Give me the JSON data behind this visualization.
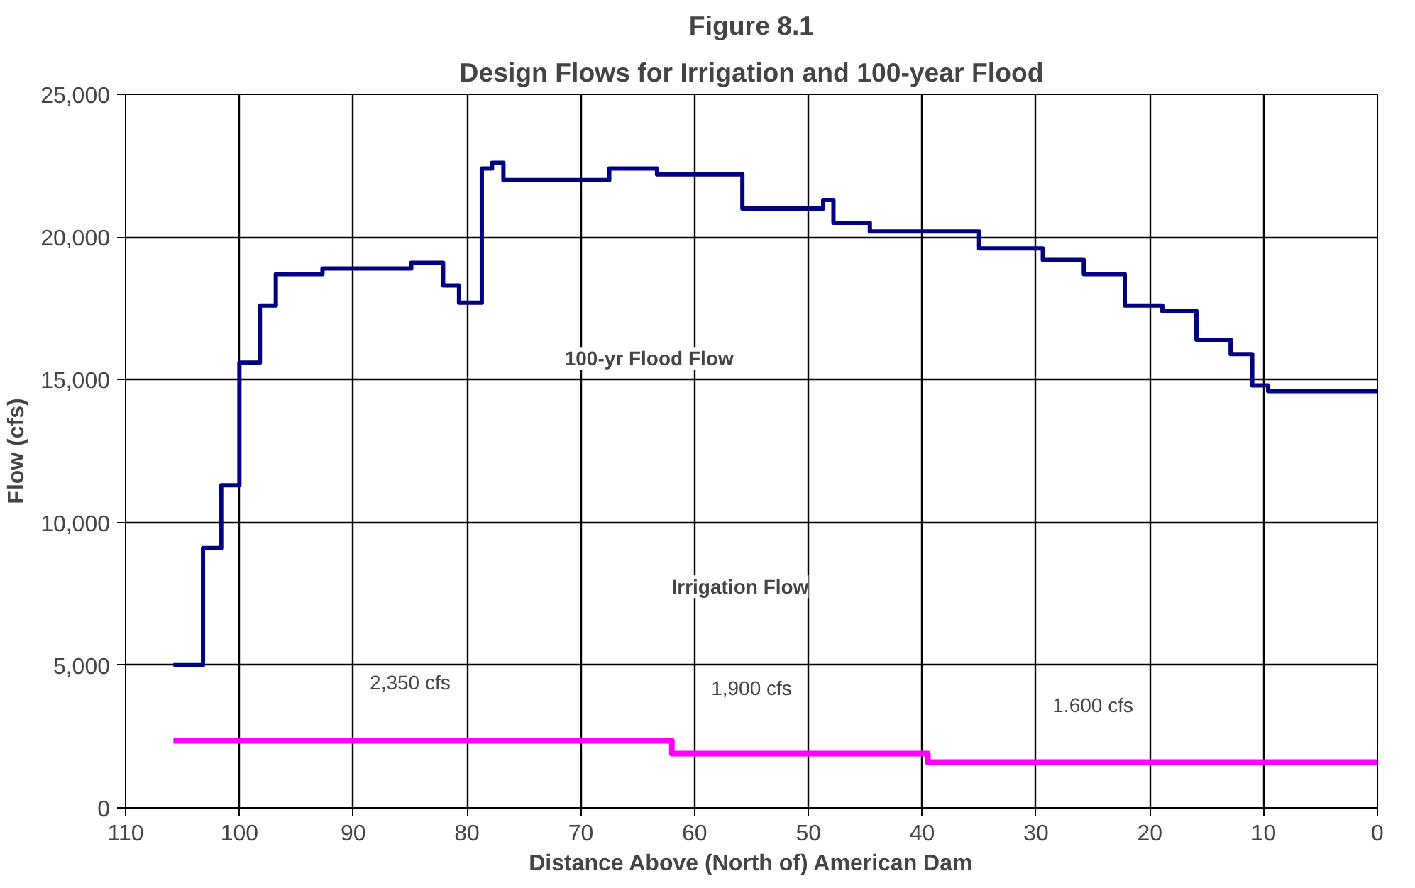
{
  "chart_data": {
    "type": "step",
    "title": "Figure 8.1",
    "subtitle": "Design Flows for Irrigation and 100-year Flood",
    "xlabel": "Distance Above (North of) American Dam",
    "ylabel": "Flow (cfs)",
    "xlim": [
      110,
      0
    ],
    "xticks": [
      110,
      100,
      90,
      80,
      70,
      60,
      50,
      40,
      30,
      20,
      10,
      0
    ],
    "ylim": [
      0,
      25000
    ],
    "yticks": [
      {
        "value": 0,
        "label": "0"
      },
      {
        "value": 5000,
        "label": "5,000"
      },
      {
        "value": 10000,
        "label": "10,000"
      },
      {
        "value": 15000,
        "label": "15,000"
      },
      {
        "value": 20000,
        "label": "20,000"
      },
      {
        "value": 25000,
        "label": "25,000"
      }
    ],
    "grid": true,
    "series": [
      {
        "color": "#000080",
        "x": [
          105.8,
          103.2,
          101.6,
          100.0,
          98.2,
          96.8,
          92.7,
          84.9,
          82.1,
          80.7,
          78.7,
          77.8,
          76.8,
          67.5,
          63.3,
          55.8,
          48.7,
          47.8,
          44.6,
          35.0,
          29.4,
          25.8,
          22.2,
          18.9,
          15.9,
          12.9,
          11.0,
          9.6,
          0
        ],
        "values": [
          5000,
          9100,
          11300,
          15600,
          17600,
          18700,
          18900,
          19100,
          18300,
          17700,
          22400,
          22600,
          22000,
          22400,
          22200,
          21000,
          21300,
          20500,
          20200,
          19600,
          19200,
          18700,
          17600,
          17400,
          16400,
          15900,
          14800,
          14600,
          14600
        ]
      },
      {
        "color": "#ff00ff",
        "x": [
          105.8,
          62,
          39.5,
          0
        ],
        "values": [
          2350,
          1900,
          1600,
          1600
        ]
      }
    ],
    "annotations": [
      "100-yr Flood Flow",
      "Irrigation Flow",
      "2,350 cfs",
      "1,900 cfs",
      "1.600 cfs"
    ]
  }
}
